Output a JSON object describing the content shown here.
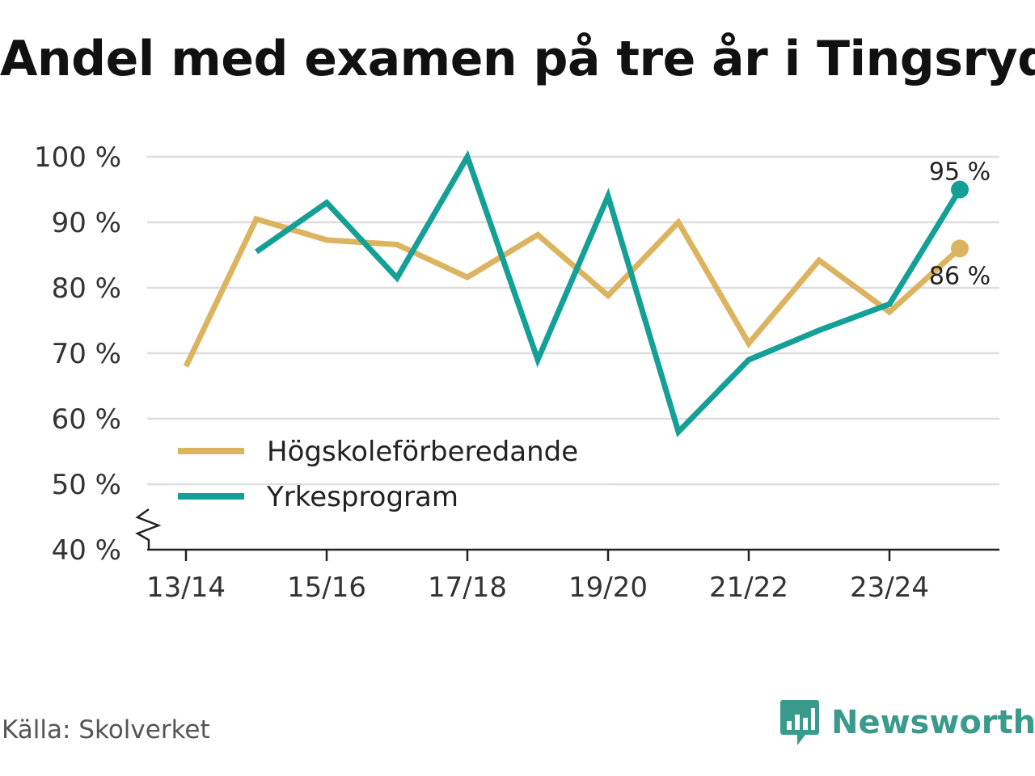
{
  "title": "Andel med examen på tre år i Tingsryd",
  "source": "Källa: Skolverket",
  "brand": {
    "name": "Newsworthy",
    "icon": "newsworthy-logo-icon",
    "color": "#3a9a8c"
  },
  "chart_data": {
    "type": "line",
    "title": "Andel med examen på tre år i Tingsryd",
    "x": [
      "13/14",
      "14/15",
      "15/16",
      "16/17",
      "17/18",
      "18/19",
      "19/20",
      "20/21",
      "21/22",
      "22/23",
      "23/24",
      "24/25"
    ],
    "x_tick_labels": [
      "13/14",
      "15/16",
      "17/18",
      "19/20",
      "21/22",
      "23/24"
    ],
    "y_tick_labels": [
      "40 %",
      "50 %",
      "60 %",
      "70 %",
      "80 %",
      "90 %",
      "100 %"
    ],
    "ylim": [
      40,
      100
    ],
    "y_axis_break": true,
    "grid": true,
    "legend_position": "bottom-left",
    "series": [
      {
        "name": "Högskoleförberedande",
        "color": "#dcb35f",
        "values": [
          68,
          90.5,
          87.3,
          86.6,
          81.6,
          88.1,
          78.8,
          90,
          71.5,
          84.2,
          76.3,
          86
        ],
        "end_label": "86 %"
      },
      {
        "name": "Yrkesprogram",
        "color": "#14a096",
        "values": [
          null,
          85.5,
          93,
          81.5,
          100,
          69,
          94,
          58,
          69,
          73.5,
          77.5,
          95
        ],
        "end_label": "95 %"
      }
    ]
  }
}
